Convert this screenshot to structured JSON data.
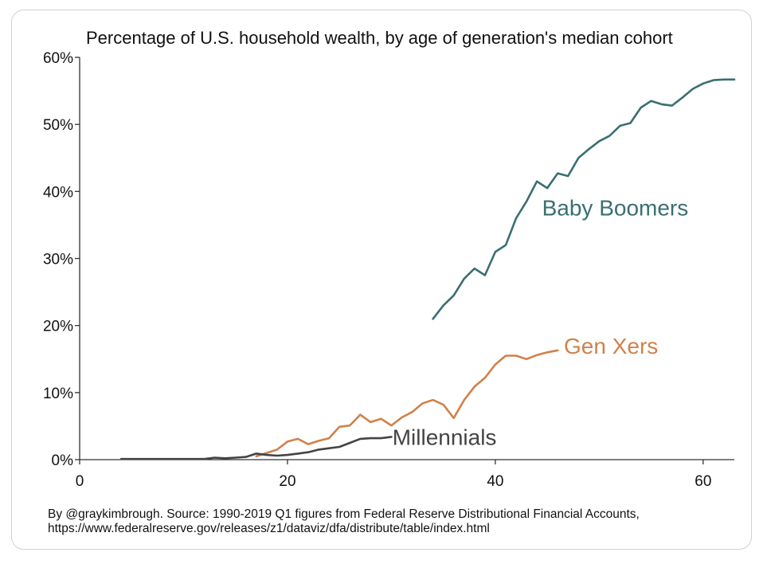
{
  "chart_data": {
    "type": "line",
    "title": "Percentage of U.S. household wealth, by age of generation's median cohort",
    "xlabel": "",
    "ylabel": "",
    "xlim": [
      0,
      63
    ],
    "ylim": [
      0,
      60
    ],
    "x_ticks": [
      0,
      20,
      40,
      60
    ],
    "x_tick_labels": [
      "0",
      "20",
      "40",
      "60"
    ],
    "y_ticks": [
      0,
      10,
      20,
      30,
      40,
      50,
      60
    ],
    "y_tick_labels": [
      "0%",
      "10%",
      "20%",
      "30%",
      "40%",
      "50%",
      "60%"
    ],
    "series": [
      {
        "name": "Baby Boomers",
        "label": "Baby Boomers",
        "color": "#3a6f73",
        "x": [
          34,
          35,
          36,
          37,
          38,
          39,
          40,
          41,
          42,
          43,
          44,
          45,
          46,
          47,
          48,
          49,
          50,
          51,
          52,
          53,
          54,
          55,
          56,
          57,
          58,
          59,
          60,
          61,
          62,
          63
        ],
        "y": [
          21,
          23,
          24.5,
          27,
          28.5,
          27.5,
          31,
          32,
          36,
          38.5,
          41.5,
          40.5,
          42.7,
          42.3,
          45,
          46.3,
          47.5,
          48.3,
          49.8,
          50.2,
          52.5,
          53.5,
          53,
          52.8,
          54,
          55.3,
          56.1,
          56.6,
          56.7,
          56.7
        ]
      },
      {
        "name": "Gen Xers",
        "label": "Gen Xers",
        "color": "#d0814a",
        "x": [
          17,
          18,
          19,
          20,
          21,
          22,
          23,
          24,
          25,
          26,
          27,
          28,
          29,
          30,
          31,
          32,
          33,
          34,
          35,
          36,
          37,
          38,
          39,
          40,
          41,
          42,
          43,
          44,
          45,
          46
        ],
        "y": [
          0.5,
          1,
          1.5,
          2.7,
          3.1,
          2.3,
          2.8,
          3.2,
          4.9,
          5.1,
          6.7,
          5.6,
          6.1,
          5.1,
          6.3,
          7.1,
          8.4,
          8.9,
          8.2,
          6.2,
          8.9,
          10.9,
          12.2,
          14.2,
          15.5,
          15.5,
          15,
          15.6,
          16,
          16.3
        ]
      },
      {
        "name": "Millennials",
        "label": "Millennials",
        "color": "#444444",
        "x": [
          4,
          6,
          8,
          10,
          12,
          13,
          14,
          15,
          16,
          17,
          18,
          19,
          20,
          21,
          22,
          23,
          24,
          25,
          26,
          27,
          28,
          29,
          30
        ],
        "y": [
          0.1,
          0.1,
          0.1,
          0.1,
          0.1,
          0.3,
          0.2,
          0.3,
          0.4,
          0.9,
          0.7,
          0.6,
          0.7,
          0.9,
          1.1,
          1.5,
          1.7,
          1.9,
          2.5,
          3.1,
          3.2,
          3.2,
          3.4
        ]
      }
    ]
  },
  "source": {
    "line1": "By @graykimbrough. Source: 1990-2019 Q1 figures from Federal Reserve Distributional Financial Accounts,",
    "line2": "https://www.federalreserve.gov/releases/z1/dataviz/dfa/distribute/table/index.html"
  }
}
